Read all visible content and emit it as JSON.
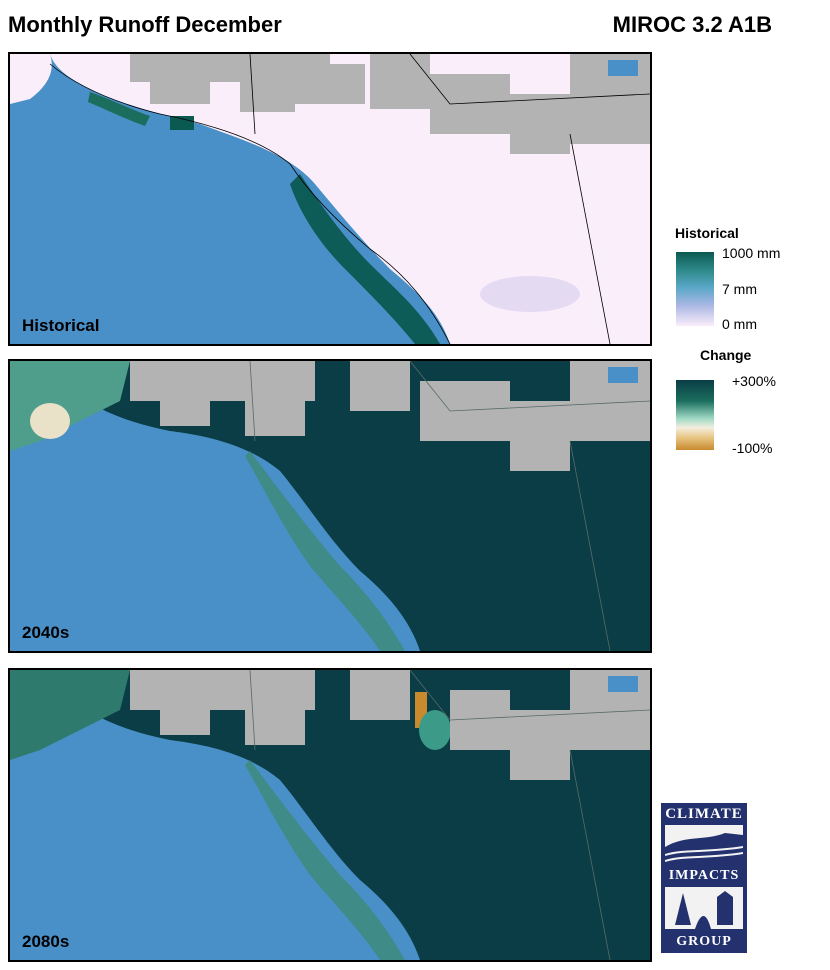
{
  "header": {
    "title": "Monthly Runoff December",
    "model": "MIROC 3.2 A1B"
  },
  "panels": [
    {
      "id": "historical",
      "label": "Historical"
    },
    {
      "id": "2040s",
      "label": "2040s"
    },
    {
      "id": "2080s",
      "label": "2080s"
    }
  ],
  "legend": {
    "historical": {
      "title": "Historical",
      "ticks": [
        "1000 mm",
        "7 mm",
        "0 mm"
      ]
    },
    "change": {
      "title": "Change",
      "ticks": [
        "+300%",
        "-100%"
      ]
    }
  },
  "logo": {
    "line1": "CLIMATE",
    "line2": "IMPACTS",
    "line3": "GROUP"
  },
  "colors": {
    "ocean": "#4a90c8",
    "nodata": "#b3b3b3",
    "land_low": "#fbeefb",
    "dark_teal": "#0a3d45",
    "hist_high": "#0b5a52"
  }
}
